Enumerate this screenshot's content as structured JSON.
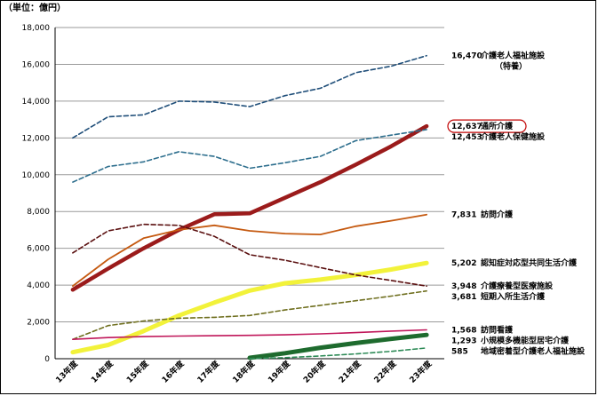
{
  "chart_data": {
    "type": "line",
    "unit_label": "（単位：億円）",
    "categories": [
      "13年度",
      "14年度",
      "15年度",
      "16年度",
      "17年度",
      "18年度",
      "19年度",
      "20年度",
      "21年度",
      "22年度",
      "23年度"
    ],
    "ylim": [
      0,
      18000
    ],
    "yticks": [
      "0",
      "2,000",
      "4,000",
      "6,000",
      "8,000",
      "10,000",
      "12,000",
      "14,000",
      "16,000",
      "18,000"
    ],
    "grid": true,
    "legend": "end-of-line labels on right",
    "series": [
      {
        "name": "介護老人福祉施設",
        "name2": "（特養）",
        "end_label": "16,470",
        "color": "#1f4e79",
        "dash": true,
        "width": 1.6,
        "values": [
          12000,
          13150,
          13250,
          14000,
          13950,
          13700,
          14300,
          14700,
          15550,
          15900,
          16470
        ]
      },
      {
        "name": "通所介護",
        "end_label": "12,637",
        "color": "#9b1b1b",
        "dash": false,
        "width": 4.5,
        "circled": true,
        "values": [
          3750,
          4900,
          6000,
          7000,
          7850,
          7900,
          8750,
          9600,
          10550,
          11550,
          12637
        ]
      },
      {
        "name": "介護老人保健施設",
        "end_label": "12,453",
        "color": "#2e6f8e",
        "dash": true,
        "width": 1.6,
        "values": [
          9600,
          10450,
          10700,
          11250,
          11000,
          10350,
          10650,
          11000,
          11850,
          12150,
          12453
        ]
      },
      {
        "name": "訪問介護",
        "end_label": "7,831",
        "color": "#c55a11",
        "dash": false,
        "width": 1.8,
        "values": [
          3950,
          5400,
          6550,
          7000,
          7250,
          6950,
          6800,
          6750,
          7200,
          7500,
          7831
        ]
      },
      {
        "name": "認知症対応型共同生活介護",
        "end_label": "5,202",
        "color": "#f2f23a",
        "dash": false,
        "width": 5,
        "values": [
          350,
          750,
          1500,
          2350,
          3050,
          3700,
          4100,
          4300,
          4550,
          4850,
          5202
        ]
      },
      {
        "name": "介護療養型医療施設",
        "end_label": "3,948",
        "color": "#5a0f0f",
        "dash": true,
        "width": 1.6,
        "values": [
          5750,
          6950,
          7300,
          7250,
          6650,
          5650,
          5350,
          4950,
          4550,
          4250,
          3948
        ]
      },
      {
        "name": "短期入所生活介護",
        "end_label": "3,681",
        "color": "#6f6f1f",
        "dash": true,
        "width": 1.6,
        "values": [
          1050,
          1800,
          2050,
          2200,
          2250,
          2350,
          2650,
          2900,
          3150,
          3400,
          3681
        ]
      },
      {
        "name": "訪問看護",
        "end_label": "1,568",
        "color": "#c0175a",
        "dash": false,
        "width": 1.6,
        "values": [
          1050,
          1150,
          1200,
          1230,
          1250,
          1270,
          1300,
          1350,
          1420,
          1500,
          1568
        ]
      },
      {
        "name": "小規模多機能型居宅介護",
        "end_label": "1,293",
        "color": "#1e6b2e",
        "dash": false,
        "width": 5,
        "values": [
          null,
          null,
          null,
          null,
          null,
          50,
          300,
          600,
          850,
          1080,
          1293
        ]
      },
      {
        "name": "地域密着型介護老人福祉施設",
        "end_label": "585",
        "color": "#2e8b57",
        "dash": true,
        "width": 1.6,
        "values": [
          null,
          null,
          null,
          null,
          null,
          10,
          60,
          150,
          260,
          400,
          585
        ]
      }
    ]
  }
}
